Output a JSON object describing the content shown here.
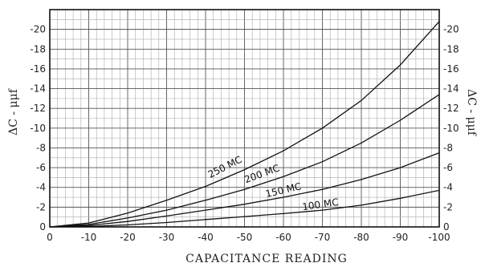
{
  "chart_data": {
    "type": "line",
    "title": "",
    "xlabel": "CAPACITANCE READING",
    "ylabel_left": "ΔC - μμf",
    "ylabel_right": "ΔC - μμf",
    "xlim": [
      0,
      100
    ],
    "ylim": [
      0,
      22
    ],
    "grid": true,
    "x_ticks": [
      0,
      10,
      20,
      30,
      40,
      50,
      60,
      70,
      80,
      90,
      100
    ],
    "x_tick_labels": [
      "0",
      "-10",
      "-20",
      "-30",
      "-40",
      "-50",
      "-60",
      "-70",
      "-80",
      "-90",
      "-100"
    ],
    "y_ticks": [
      0,
      2,
      4,
      6,
      8,
      10,
      12,
      14,
      16,
      18,
      20
    ],
    "y_tick_labels": [
      "0",
      "-2",
      "-4",
      "-6",
      "-8",
      "-10",
      "-12",
      "-14",
      "-16",
      "-18",
      "-20"
    ],
    "series": [
      {
        "name": "250 MC",
        "x": [
          0,
          10,
          20,
          30,
          40,
          50,
          60,
          70,
          80,
          90,
          100
        ],
        "values": [
          0,
          0.4,
          1.4,
          2.7,
          4.1,
          5.8,
          7.7,
          10.0,
          12.8,
          16.4,
          20.8
        ]
      },
      {
        "name": "200 MC",
        "x": [
          0,
          10,
          20,
          30,
          40,
          50,
          60,
          70,
          80,
          90,
          100
        ],
        "values": [
          0,
          0.25,
          0.9,
          1.7,
          2.7,
          3.8,
          5.1,
          6.6,
          8.5,
          10.8,
          13.4
        ]
      },
      {
        "name": "150 MC",
        "x": [
          0,
          10,
          20,
          30,
          40,
          50,
          60,
          70,
          80,
          90,
          100
        ],
        "values": [
          0,
          0.15,
          0.55,
          1.1,
          1.7,
          2.3,
          3.0,
          3.8,
          4.8,
          6.0,
          7.5
        ]
      },
      {
        "name": "100 MC",
        "x": [
          0,
          10,
          20,
          30,
          40,
          50,
          60,
          70,
          80,
          90,
          100
        ],
        "values": [
          0,
          0.05,
          0.2,
          0.45,
          0.75,
          1.05,
          1.35,
          1.7,
          2.2,
          2.9,
          3.7
        ]
      }
    ]
  }
}
